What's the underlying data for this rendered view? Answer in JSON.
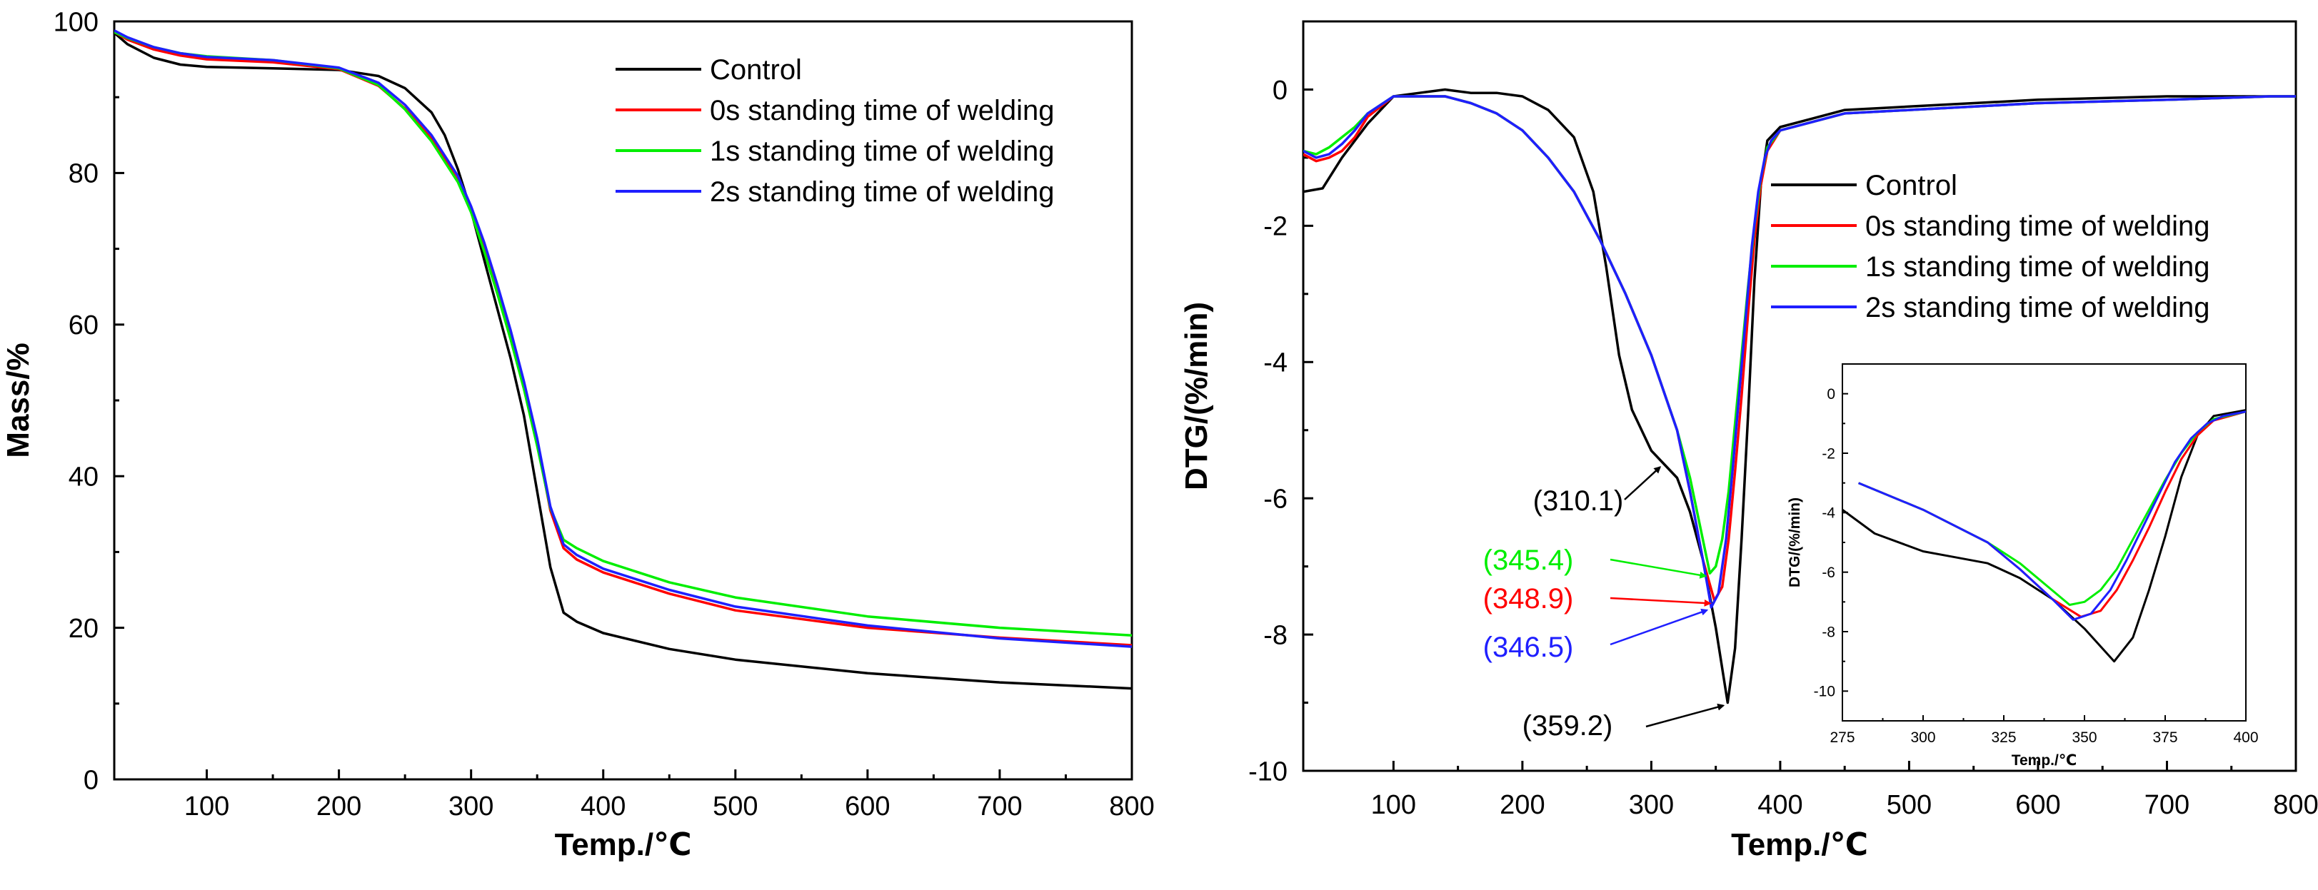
{
  "chart_data": [
    {
      "type": "line",
      "panel": "left",
      "xlabel": "Temp./℃",
      "ylabel": "Mass/%",
      "xlim": [
        30,
        800
      ],
      "ylim": [
        0,
        100
      ],
      "xticks": [
        100,
        200,
        300,
        400,
        500,
        600,
        700,
        800
      ],
      "yticks": [
        0,
        20,
        40,
        60,
        80,
        100
      ],
      "legend_position": "top-right",
      "series": [
        {
          "name": "Control",
          "color": "#000000",
          "x": [
            30,
            40,
            60,
            80,
            100,
            150,
            200,
            230,
            250,
            270,
            280,
            290,
            300,
            310,
            320,
            330,
            340,
            350,
            360,
            370,
            380,
            400,
            450,
            500,
            600,
            700,
            800
          ],
          "y": [
            98.5,
            97.0,
            95.2,
            94.3,
            94.0,
            93.8,
            93.6,
            92.8,
            91.2,
            88.0,
            85.0,
            80.5,
            75.0,
            68.5,
            62.0,
            55.5,
            48.0,
            38.0,
            28.0,
            22.0,
            20.8,
            19.3,
            17.2,
            15.8,
            14.0,
            12.8,
            12.0
          ]
        },
        {
          "name": "0s standing time of welding",
          "color": "#ff0000",
          "x": [
            30,
            40,
            60,
            80,
            100,
            150,
            200,
            230,
            250,
            270,
            290,
            300,
            310,
            320,
            330,
            340,
            350,
            360,
            370,
            380,
            400,
            450,
            500,
            600,
            700,
            800
          ],
          "y": [
            98.6,
            97.6,
            96.3,
            95.5,
            95.0,
            94.6,
            93.7,
            91.5,
            88.5,
            84.5,
            79.0,
            75.0,
            70.0,
            64.5,
            58.5,
            52.0,
            44.5,
            35.5,
            30.5,
            29.0,
            27.3,
            24.5,
            22.3,
            20.0,
            18.7,
            17.7
          ]
        },
        {
          "name": "1s standing time of welding",
          "color": "#00ee00",
          "x": [
            30,
            40,
            60,
            80,
            100,
            150,
            200,
            230,
            250,
            270,
            290,
            300,
            310,
            320,
            330,
            340,
            350,
            360,
            370,
            380,
            400,
            450,
            500,
            600,
            700,
            800
          ],
          "y": [
            98.6,
            97.8,
            96.6,
            95.8,
            95.4,
            94.9,
            93.8,
            91.6,
            88.4,
            84.2,
            78.8,
            74.8,
            69.6,
            64.0,
            58.0,
            51.5,
            44.0,
            35.8,
            31.6,
            30.5,
            28.8,
            26.0,
            24.0,
            21.5,
            20.0,
            19.0
          ]
        },
        {
          "name": "2s standing time of welding",
          "color": "#1f1fff",
          "x": [
            30,
            40,
            60,
            80,
            100,
            150,
            200,
            230,
            250,
            270,
            290,
            300,
            310,
            320,
            330,
            340,
            350,
            360,
            370,
            380,
            400,
            450,
            500,
            600,
            700,
            800
          ],
          "y": [
            98.8,
            97.9,
            96.6,
            95.8,
            95.3,
            94.9,
            93.9,
            91.9,
            89.0,
            85.0,
            79.6,
            75.6,
            70.8,
            65.2,
            59.2,
            52.5,
            45.0,
            36.0,
            31.0,
            29.6,
            27.8,
            25.0,
            22.8,
            20.3,
            18.6,
            17.5
          ]
        }
      ]
    },
    {
      "type": "line",
      "panel": "right",
      "xlabel": "Temp./℃",
      "ylabel": "DTG/(%/min)",
      "xlim": [
        30,
        800
      ],
      "ylim": [
        -10,
        1
      ],
      "xticks": [
        100,
        200,
        300,
        400,
        500,
        600,
        700,
        800
      ],
      "yticks": [
        0,
        -2,
        -4,
        -6,
        -8,
        -10
      ],
      "legend_position": "middle-right",
      "series": [
        {
          "name": "Control",
          "color": "#000000",
          "x": [
            30,
            45,
            60,
            80,
            100,
            120,
            140,
            160,
            180,
            200,
            220,
            240,
            255,
            265,
            275,
            285,
            300,
            310,
            320,
            330,
            340,
            350,
            359.2,
            365,
            370,
            375,
            380,
            385,
            390,
            400,
            450,
            500,
            600,
            700,
            780,
            800
          ],
          "y": [
            -1.5,
            -1.45,
            -1.0,
            -0.5,
            -0.1,
            -0.05,
            0.0,
            -0.05,
            -0.05,
            -0.1,
            -0.3,
            -0.7,
            -1.5,
            -2.6,
            -3.9,
            -4.7,
            -5.3,
            -5.5,
            -5.7,
            -6.2,
            -6.9,
            -7.9,
            -9.0,
            -8.2,
            -6.6,
            -4.8,
            -2.8,
            -1.4,
            -0.75,
            -0.55,
            -0.3,
            -0.25,
            -0.15,
            -0.1,
            -0.1,
            -0.1
          ]
        },
        {
          "name": "0s standing time of welding",
          "color": "#ff0000",
          "x": [
            30,
            40,
            50,
            60,
            70,
            80,
            100,
            120,
            140,
            160,
            180,
            200,
            220,
            240,
            260,
            280,
            300,
            320,
            330,
            340,
            348.9,
            355,
            360,
            365,
            370,
            375,
            380,
            385,
            390,
            400,
            450,
            500,
            600,
            700,
            780,
            800
          ],
          "y": [
            -0.95,
            -1.05,
            -1.0,
            -0.9,
            -0.7,
            -0.4,
            -0.1,
            -0.1,
            -0.1,
            -0.2,
            -0.35,
            -0.6,
            -1.0,
            -1.5,
            -2.2,
            -3.0,
            -3.9,
            -5.0,
            -5.9,
            -6.9,
            -7.5,
            -7.3,
            -6.6,
            -5.6,
            -4.5,
            -3.3,
            -2.2,
            -1.4,
            -0.9,
            -0.6,
            -0.35,
            -0.3,
            -0.2,
            -0.15,
            -0.1,
            -0.1
          ]
        },
        {
          "name": "1s standing time of welding",
          "color": "#00ee00",
          "x": [
            30,
            40,
            50,
            60,
            70,
            80,
            100,
            120,
            140,
            160,
            180,
            200,
            220,
            240,
            260,
            280,
            300,
            320,
            330,
            345.4,
            350,
            355,
            360,
            365,
            370,
            375,
            380,
            385,
            390,
            400,
            450,
            500,
            600,
            700,
            780,
            800
          ],
          "y": [
            -0.9,
            -0.95,
            -0.85,
            -0.7,
            -0.55,
            -0.35,
            -0.1,
            -0.1,
            -0.1,
            -0.2,
            -0.35,
            -0.6,
            -1.0,
            -1.5,
            -2.2,
            -3.0,
            -3.9,
            -5.0,
            -5.7,
            -7.1,
            -7.0,
            -6.6,
            -5.9,
            -4.9,
            -3.9,
            -2.9,
            -2.0,
            -1.3,
            -0.85,
            -0.6,
            -0.35,
            -0.3,
            -0.2,
            -0.15,
            -0.1,
            -0.1
          ]
        },
        {
          "name": "2s standing time of welding",
          "color": "#1f1fff",
          "x": [
            30,
            40,
            50,
            60,
            70,
            80,
            100,
            120,
            140,
            160,
            180,
            200,
            220,
            240,
            260,
            280,
            300,
            320,
            330,
            340,
            346.5,
            352,
            358,
            363,
            368,
            373,
            378,
            383,
            388,
            393,
            400,
            450,
            500,
            600,
            700,
            780,
            800
          ],
          "y": [
            -0.9,
            -1.0,
            -0.95,
            -0.8,
            -0.6,
            -0.35,
            -0.1,
            -0.1,
            -0.1,
            -0.2,
            -0.35,
            -0.6,
            -1.0,
            -1.5,
            -2.2,
            -3.0,
            -3.9,
            -5.0,
            -5.9,
            -6.9,
            -7.6,
            -7.4,
            -6.6,
            -5.6,
            -4.5,
            -3.4,
            -2.3,
            -1.5,
            -1.0,
            -0.75,
            -0.6,
            -0.35,
            -0.3,
            -0.2,
            -0.15,
            -0.1,
            -0.1
          ]
        }
      ],
      "annotations": [
        {
          "text": "(310.1)",
          "color": "#000000",
          "x": 310.1,
          "y": -5.5
        },
        {
          "text": "(345.4)",
          "color": "#00ee00",
          "x": 345.4,
          "y": -7.1
        },
        {
          "text": "(348.9)",
          "color": "#ff0000",
          "x": 348.9,
          "y": -7.5
        },
        {
          "text": "(346.5)",
          "color": "#1f1fff",
          "x": 346.5,
          "y": -7.6
        },
        {
          "text": "(359.2)",
          "color": "#000000",
          "x": 359.2,
          "y": -9.0
        }
      ],
      "inset": {
        "xlabel": "Temp./℃",
        "ylabel": "DTG/(%/min)",
        "xlim": [
          275,
          400
        ],
        "ylim": [
          -11,
          1
        ],
        "xticks": [
          275,
          300,
          325,
          350,
          375,
          400
        ],
        "yticks": [
          0,
          -2,
          -4,
          -6,
          -8,
          -10
        ]
      }
    }
  ]
}
